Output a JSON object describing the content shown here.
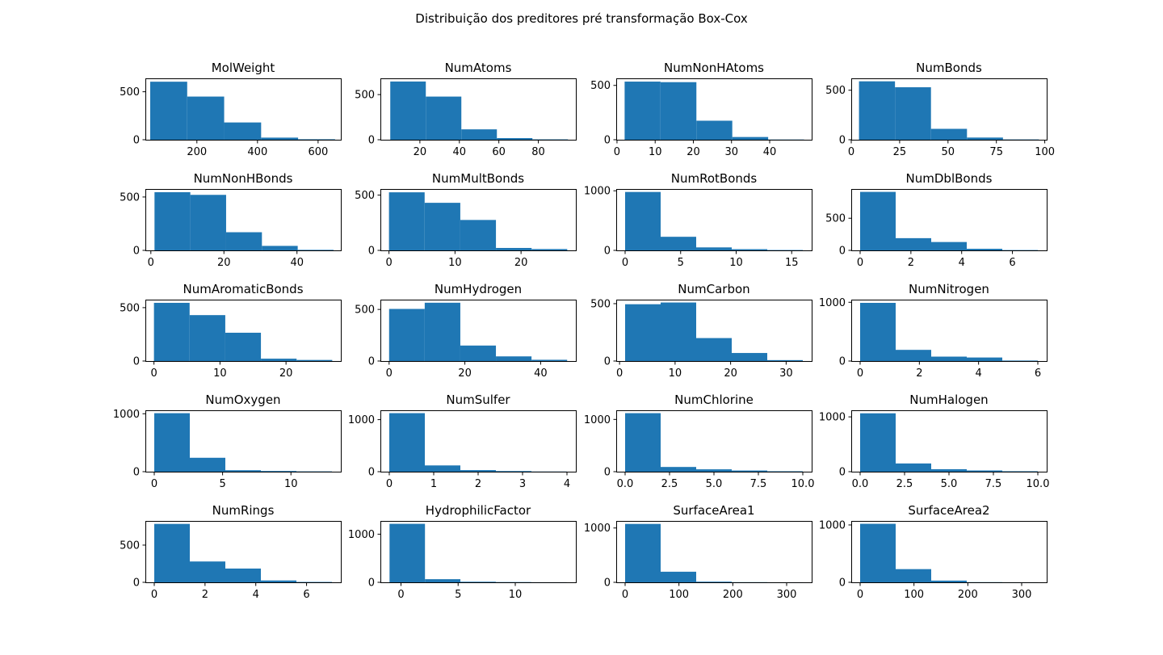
{
  "figure": {
    "title": "Distribuição dos preditores pré transformação Box-Cox",
    "bar_color": "#1f77b4"
  },
  "chart_data": [
    {
      "type": "bar",
      "title": "MolWeight",
      "bin_edges": [
        46,
        168,
        290,
        412,
        534,
        656
      ],
      "values": [
        605,
        450,
        180,
        22,
        5
      ],
      "xlim": [
        30,
        675
      ],
      "ylim": [
        0,
        640
      ],
      "xticks": [
        200,
        400,
        600
      ],
      "yticks": [
        0,
        500
      ]
    },
    {
      "type": "bar",
      "title": "NumAtoms",
      "bin_edges": [
        5,
        23,
        41,
        59,
        77,
        95
      ],
      "values": [
        645,
        478,
        115,
        18,
        4
      ],
      "xlim": [
        0,
        99
      ],
      "ylim": [
        0,
        680
      ],
      "xticks": [
        20,
        40,
        60,
        80
      ],
      "yticks": [
        0,
        500
      ]
    },
    {
      "type": "bar",
      "title": "NumNonHAtoms",
      "bin_edges": [
        2,
        11.4,
        20.8,
        30.2,
        39.6,
        49
      ],
      "values": [
        535,
        530,
        175,
        25,
        2
      ],
      "xlim": [
        -0.2,
        51
      ],
      "ylim": [
        0,
        565
      ],
      "xticks": [
        0,
        10,
        20,
        30,
        40
      ],
      "yticks": [
        0,
        500
      ]
    },
    {
      "type": "bar",
      "title": "NumBonds",
      "bin_edges": [
        4,
        22.6,
        41.2,
        59.8,
        78.4,
        97
      ],
      "values": [
        590,
        530,
        110,
        22,
        3
      ],
      "xlim": [
        0,
        101
      ],
      "ylim": [
        0,
        620
      ],
      "xticks": [
        0,
        25,
        50,
        75,
        100
      ],
      "yticks": [
        0,
        500
      ]
    },
    {
      "type": "bar",
      "title": "NumNonHBonds",
      "bin_edges": [
        1,
        10.8,
        20.6,
        30.4,
        40.2,
        50
      ],
      "values": [
        545,
        520,
        170,
        42,
        5
      ],
      "xlim": [
        -1.5,
        52
      ],
      "ylim": [
        0,
        575
      ],
      "xticks": [
        0,
        20,
        40
      ],
      "yticks": [
        0,
        500
      ]
    },
    {
      "type": "bar",
      "title": "NumMultBonds",
      "bin_edges": [
        0,
        5.4,
        10.8,
        16.2,
        21.6,
        27
      ],
      "values": [
        525,
        430,
        275,
        22,
        12
      ],
      "xlim": [
        -1.3,
        28.3
      ],
      "ylim": [
        0,
        555
      ],
      "xticks": [
        0,
        10,
        20
      ],
      "yticks": [
        0,
        500
      ]
    },
    {
      "type": "bar",
      "title": "NumRotBonds",
      "bin_edges": [
        0,
        3.2,
        6.4,
        9.6,
        12.8,
        16
      ],
      "values": [
        980,
        228,
        50,
        20,
        6
      ],
      "xlim": [
        -0.8,
        16.8
      ],
      "ylim": [
        0,
        1030
      ],
      "xticks": [
        0,
        5,
        10,
        15
      ],
      "yticks": [
        0,
        1000
      ]
    },
    {
      "type": "bar",
      "title": "NumDblBonds",
      "bin_edges": [
        0,
        1.4,
        2.8,
        4.2,
        5.6,
        7
      ],
      "values": [
        910,
        190,
        130,
        25,
        5
      ],
      "xlim": [
        -0.35,
        7.35
      ],
      "ylim": [
        0,
        955
      ],
      "xticks": [
        0,
        2,
        4,
        6
      ],
      "yticks": [
        0,
        500
      ]
    },
    {
      "type": "bar",
      "title": "NumAromaticBonds",
      "bin_edges": [
        0,
        5.4,
        10.8,
        16.2,
        21.6,
        27
      ],
      "values": [
        545,
        430,
        265,
        22,
        10
      ],
      "xlim": [
        -1.3,
        28.3
      ],
      "ylim": [
        0,
        575
      ],
      "xticks": [
        0,
        10,
        20
      ],
      "yticks": [
        0,
        500
      ]
    },
    {
      "type": "bar",
      "title": "NumHydrogen",
      "bin_edges": [
        0,
        9.4,
        18.8,
        28.2,
        37.6,
        47
      ],
      "values": [
        505,
        565,
        150,
        45,
        12
      ],
      "xlim": [
        -2.3,
        49.3
      ],
      "ylim": [
        0,
        595
      ],
      "xticks": [
        0,
        20,
        40
      ],
      "yticks": [
        0,
        500
      ]
    },
    {
      "type": "bar",
      "title": "NumCarbon",
      "bin_edges": [
        1,
        7.4,
        13.8,
        20.2,
        26.6,
        33
      ],
      "values": [
        495,
        510,
        200,
        70,
        8
      ],
      "xlim": [
        -0.6,
        34.6
      ],
      "ylim": [
        0,
        535
      ],
      "xticks": [
        0,
        10,
        20,
        30
      ],
      "yticks": [
        0,
        500
      ]
    },
    {
      "type": "bar",
      "title": "NumNitrogen",
      "bin_edges": [
        0,
        1.2,
        2.4,
        3.6,
        4.8,
        6
      ],
      "values": [
        990,
        190,
        75,
        60,
        8
      ],
      "xlim": [
        -0.3,
        6.3
      ],
      "ylim": [
        0,
        1045
      ],
      "xticks": [
        0,
        2,
        4,
        6
      ],
      "yticks": [
        0,
        1000
      ]
    },
    {
      "type": "bar",
      "title": "NumOxygen",
      "bin_edges": [
        0,
        2.6,
        5.2,
        7.8,
        10.4,
        13
      ],
      "values": [
        1010,
        240,
        25,
        12,
        5
      ],
      "xlim": [
        -0.65,
        13.65
      ],
      "ylim": [
        0,
        1060
      ],
      "xticks": [
        0,
        5,
        10
      ],
      "yticks": [
        0,
        1000
      ]
    },
    {
      "type": "bar",
      "title": "NumSulfer",
      "bin_edges": [
        0,
        0.8,
        1.6,
        2.4,
        3.2,
        4
      ],
      "values": [
        1125,
        120,
        30,
        12,
        3
      ],
      "xlim": [
        -0.2,
        4.2
      ],
      "ylim": [
        0,
        1180
      ],
      "xticks": [
        0,
        1,
        2,
        3,
        4
      ],
      "yticks": [
        0,
        1000
      ]
    },
    {
      "type": "bar",
      "title": "NumChlorine",
      "bin_edges": [
        0,
        2,
        4,
        6,
        8,
        10
      ],
      "values": [
        1120,
        90,
        45,
        22,
        8
      ],
      "xlim": [
        -0.5,
        10.5
      ],
      "ylim": [
        0,
        1175
      ],
      "xticks": [
        0.0,
        2.5,
        5.0,
        7.5,
        10.0
      ],
      "yticks": [
        0,
        1000
      ]
    },
    {
      "type": "bar",
      "title": "NumHalogen",
      "bin_edges": [
        0,
        2,
        4,
        6,
        8,
        10
      ],
      "values": [
        1065,
        150,
        45,
        22,
        8
      ],
      "xlim": [
        -0.5,
        10.5
      ],
      "ylim": [
        0,
        1120
      ],
      "xticks": [
        0.0,
        2.5,
        5.0,
        7.5,
        10.0
      ],
      "yticks": [
        0,
        1000
      ]
    },
    {
      "type": "bar",
      "title": "NumRings",
      "bin_edges": [
        0,
        1.4,
        2.8,
        4.2,
        5.6,
        7
      ],
      "values": [
        785,
        280,
        185,
        25,
        5
      ],
      "xlim": [
        -0.35,
        7.35
      ],
      "ylim": [
        0,
        825
      ],
      "xticks": [
        0,
        2,
        4,
        6
      ],
      "yticks": [
        0,
        500
      ]
    },
    {
      "type": "bar",
      "title": "HydrophilicFactor",
      "bin_edges": [
        -1,
        2.1,
        5.2,
        8.3,
        11.4,
        14.5
      ],
      "values": [
        1215,
        65,
        12,
        5,
        2
      ],
      "xlim": [
        -1.8,
        15.3
      ],
      "ylim": [
        0,
        1275
      ],
      "xticks": [
        0,
        5,
        10
      ],
      "yticks": [
        0,
        1000
      ]
    },
    {
      "type": "bar",
      "title": "SurfaceArea1",
      "bin_edges": [
        0,
        66,
        132,
        198,
        264,
        330
      ],
      "values": [
        1075,
        195,
        12,
        3,
        1
      ],
      "xlim": [
        -16.5,
        346.5
      ],
      "ylim": [
        0,
        1130
      ],
      "xticks": [
        0,
        100,
        200,
        300
      ],
      "yticks": [
        0,
        1000
      ]
    },
    {
      "type": "bar",
      "title": "SurfaceArea2",
      "bin_edges": [
        0,
        66,
        132,
        198,
        264,
        330
      ],
      "values": [
        1020,
        230,
        30,
        3,
        1
      ],
      "xlim": [
        -16.5,
        346.5
      ],
      "ylim": [
        0,
        1070
      ],
      "xticks": [
        0,
        100,
        200,
        300
      ],
      "yticks": [
        0,
        1000
      ]
    }
  ]
}
